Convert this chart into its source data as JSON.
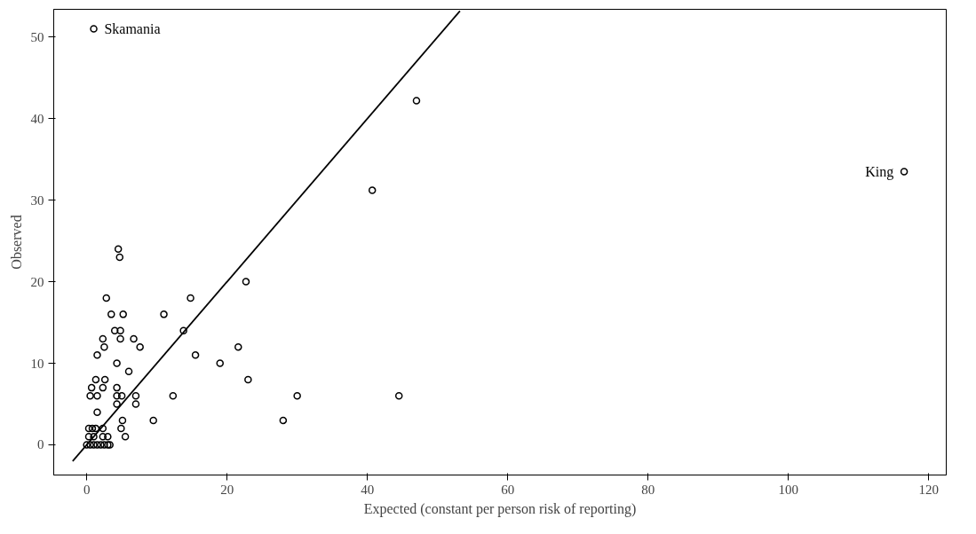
{
  "chart_data": {
    "type": "scatter",
    "xlabel": "Expected (constant per person risk of reporting)",
    "ylabel": "Observed",
    "grid": false,
    "xlim": [
      -4.7,
      122.5
    ],
    "ylim": [
      -3.7,
      53.4
    ],
    "xticks": [
      0,
      20,
      40,
      60,
      80,
      100,
      120
    ],
    "yticks": [
      0,
      10,
      20,
      30,
      40,
      50
    ],
    "series": [
      {
        "marker": "circle",
        "color": "#000000",
        "x": [
          1,
          116.5,
          47,
          40.7,
          22.7,
          14.8,
          11,
          13.8,
          21.6,
          15.5,
          19,
          23,
          12.3,
          9.5,
          28,
          30,
          44.5,
          4.5,
          4.7,
          2.8,
          3.5,
          5.2,
          4,
          4.8,
          2.3,
          4.8,
          6.7,
          2.5,
          7.6,
          1.5,
          4.3,
          6,
          1.3,
          2.6,
          0.7,
          2.3,
          4.3,
          0.5,
          1.5,
          4.3,
          5,
          7,
          4.3,
          7,
          1.5,
          0.3,
          0.8,
          1.3,
          2.3,
          4.9,
          5.1,
          5.5,
          2.3,
          3,
          0.3,
          1,
          0,
          0.5,
          1,
          1.5,
          2,
          2.5,
          3,
          3.3
        ],
        "values": [
          51,
          33.5,
          42.2,
          31.2,
          20,
          18,
          16,
          14,
          12,
          11,
          10,
          8,
          6,
          3,
          3,
          6,
          6,
          24,
          23,
          18,
          16,
          16,
          14,
          14,
          13,
          13,
          13,
          12,
          12,
          11,
          10,
          9,
          8,
          8,
          7,
          7,
          7,
          6,
          6,
          6,
          6,
          6,
          5,
          5,
          4,
          2,
          2,
          2,
          2,
          2,
          3,
          1,
          1,
          1,
          1,
          1,
          0,
          0,
          0,
          0,
          0,
          0,
          0,
          0
        ]
      },
      {
        "type": "line",
        "marker": "none",
        "color": "#000000",
        "x": [
          -2,
          53.2
        ],
        "values": [
          -2,
          53.2
        ]
      }
    ],
    "annotations": [
      {
        "text": "Skamania",
        "x": 1,
        "y": 51
      },
      {
        "text": "King",
        "x": 116.5,
        "y": 33.5
      }
    ]
  }
}
